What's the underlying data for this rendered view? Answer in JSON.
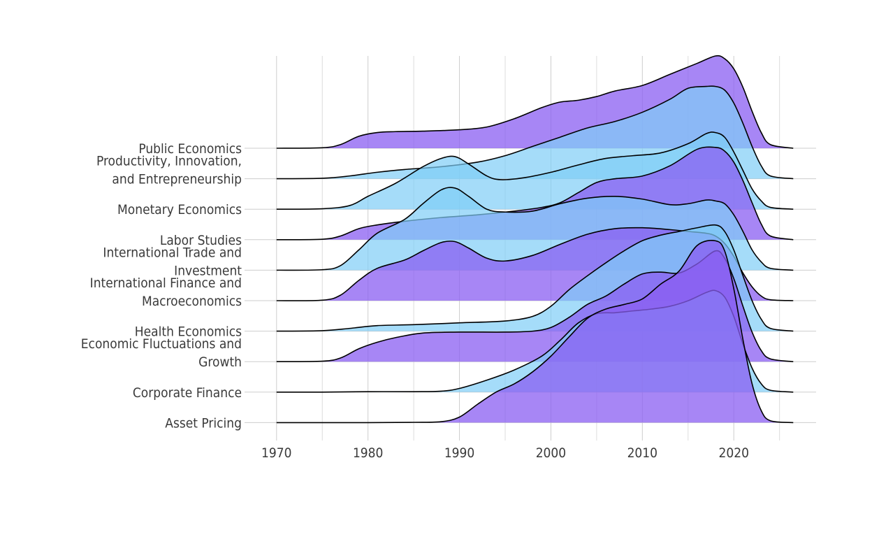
{
  "chart_data": {
    "type": "ridgeline",
    "title": "",
    "xlabel": "",
    "ylabel": "",
    "xlim": [
      1966.5,
      2029
    ],
    "x_ticks": [
      1970,
      1980,
      1990,
      2000,
      2010,
      2020
    ],
    "colors": {
      "purple": "#8a5ef2",
      "blue": "#7fcdf6",
      "grid": "#cfcfcf",
      "outline": "#000000"
    },
    "series": [
      {
        "name": "Public Economics",
        "label_lines": [
          "Public Economics"
        ],
        "color": "purple",
        "x": [
          1970,
          1975,
          1977,
          1979,
          1981,
          1983,
          1986,
          1990,
          1993,
          1996,
          1999,
          2001,
          2003,
          2005,
          2007,
          2010,
          2013,
          2016,
          2018,
          2019,
          2020,
          2021,
          2022,
          2023,
          2024,
          2026.5
        ],
        "y": [
          0,
          0.005,
          0.04,
          0.13,
          0.17,
          0.18,
          0.185,
          0.2,
          0.23,
          0.32,
          0.44,
          0.5,
          0.52,
          0.56,
          0.62,
          0.68,
          0.8,
          0.92,
          1.0,
          0.97,
          0.86,
          0.66,
          0.4,
          0.17,
          0.04,
          0
        ]
      },
      {
        "name": "Productivity, Innovation, and Entrepreneurship",
        "label_lines": [
          "Productivity, Innovation,",
          "and Entrepreneurship"
        ],
        "color": "blue",
        "x": [
          1970,
          1975,
          1978,
          1981,
          1984,
          1988,
          1992,
          1995,
          1998,
          2001,
          2004,
          2007,
          2010,
          2013,
          2015,
          2017,
          2018,
          2019,
          2020,
          2021,
          2022,
          2023,
          2024,
          2026.5
        ],
        "y": [
          0,
          0.005,
          0.03,
          0.07,
          0.1,
          0.13,
          0.18,
          0.25,
          0.35,
          0.45,
          0.55,
          0.62,
          0.72,
          0.86,
          0.98,
          1.0,
          1.0,
          0.96,
          0.82,
          0.6,
          0.35,
          0.14,
          0.03,
          0
        ]
      },
      {
        "name": "Monetary Economics",
        "label_lines": [
          "Monetary Economics"
        ],
        "color": "blue",
        "x": [
          1970,
          1975,
          1978,
          1980,
          1983,
          1986,
          1988,
          1989.5,
          1991,
          1993,
          1994.5,
          1997,
          2000,
          2003,
          2006,
          2009,
          2012,
          2015,
          2017,
          2018,
          2019,
          2020,
          2021,
          2022,
          2023,
          2024,
          2026.5
        ],
        "y": [
          0,
          0.005,
          0.04,
          0.14,
          0.28,
          0.46,
          0.55,
          0.57,
          0.49,
          0.36,
          0.32,
          0.34,
          0.4,
          0.48,
          0.55,
          0.58,
          0.61,
          0.71,
          0.82,
          0.83,
          0.78,
          0.62,
          0.42,
          0.22,
          0.09,
          0.02,
          0
        ]
      },
      {
        "name": "Labor Studies",
        "label_lines": [
          "Labor Studies"
        ],
        "color": "purple",
        "x": [
          1970,
          1975,
          1977,
          1979,
          1981,
          1984,
          1988,
          1992,
          1996,
          1999,
          2001,
          2003,
          2005,
          2007,
          2010,
          2013,
          2016,
          2018,
          2019,
          2020,
          2021,
          2022,
          2023,
          2024,
          2026.5
        ],
        "y": [
          0,
          0.005,
          0.04,
          0.12,
          0.16,
          0.2,
          0.24,
          0.27,
          0.31,
          0.35,
          0.4,
          0.51,
          0.62,
          0.66,
          0.69,
          0.8,
          0.98,
          1.0,
          0.96,
          0.84,
          0.64,
          0.4,
          0.17,
          0.04,
          0
        ]
      },
      {
        "name": "International Trade and Investment",
        "label_lines": [
          "International Trade and",
          "Investment"
        ],
        "color": "blue",
        "x": [
          1970,
          1975,
          1977,
          1979,
          1981,
          1984,
          1986,
          1988,
          1989.5,
          1991,
          1993,
          1995,
          1998,
          2001,
          2004,
          2007,
          2010,
          2013,
          2015,
          2017,
          2018,
          2019,
          2020,
          2021,
          2022,
          2023,
          2024,
          2026.5
        ],
        "y": [
          0,
          0.005,
          0.05,
          0.22,
          0.4,
          0.55,
          0.72,
          0.87,
          0.89,
          0.8,
          0.66,
          0.63,
          0.64,
          0.72,
          0.78,
          0.8,
          0.77,
          0.71,
          0.72,
          0.76,
          0.75,
          0.72,
          0.6,
          0.42,
          0.22,
          0.09,
          0.02,
          0
        ]
      },
      {
        "name": "International Finance and Macroeconomics",
        "label_lines": [
          "International Finance and",
          "Macroeconomics"
        ],
        "color": "purple",
        "x": [
          1970,
          1975,
          1977,
          1979,
          1981,
          1984,
          1986,
          1988,
          1989.5,
          1991,
          1993,
          1995,
          1998,
          2001,
          2004,
          2007,
          2010,
          2013,
          2015,
          2017,
          2018,
          2019,
          2020,
          2021,
          2022,
          2023,
          2024,
          2026.5
        ],
        "y": [
          0,
          0.005,
          0.06,
          0.22,
          0.35,
          0.44,
          0.54,
          0.63,
          0.64,
          0.57,
          0.46,
          0.43,
          0.49,
          0.61,
          0.72,
          0.78,
          0.79,
          0.77,
          0.75,
          0.73,
          0.7,
          0.62,
          0.48,
          0.3,
          0.15,
          0.05,
          0.01,
          0
        ]
      },
      {
        "name": "Health Economics",
        "label_lines": [
          "Health Economics"
        ],
        "color": "blue",
        "x": [
          1970,
          1975,
          1978,
          1981,
          1985,
          1990,
          1995,
          1998,
          2000,
          2002,
          2004,
          2006,
          2008,
          2010,
          2012,
          2014,
          2016,
          2018,
          2019,
          2020,
          2021,
          2022,
          2023,
          2024,
          2026.5
        ],
        "y": [
          0,
          0.005,
          0.03,
          0.06,
          0.07,
          0.09,
          0.11,
          0.16,
          0.27,
          0.45,
          0.6,
          0.74,
          0.87,
          0.98,
          1.04,
          1.08,
          1.12,
          1.15,
          1.08,
          0.88,
          0.6,
          0.33,
          0.13,
          0.03,
          0
        ]
      },
      {
        "name": "Economic Fluctuations and Growth",
        "label_lines": [
          "Economic Fluctuations and",
          "Growth"
        ],
        "color": "purple",
        "x": [
          1970,
          1975,
          1977,
          1979,
          1981,
          1983,
          1986,
          1990,
          1995,
          1998,
          2000,
          2002,
          2004,
          2006,
          2008,
          2010,
          2012,
          2014,
          2016,
          2018,
          2019,
          2020,
          2021,
          2022,
          2023,
          2024,
          2026.5
        ],
        "y": [
          0,
          0.005,
          0.04,
          0.14,
          0.21,
          0.26,
          0.31,
          0.32,
          0.32,
          0.33,
          0.37,
          0.48,
          0.62,
          0.71,
          0.84,
          0.95,
          0.97,
          0.96,
          1.06,
          1.2,
          1.12,
          0.9,
          0.6,
          0.32,
          0.12,
          0.03,
          0
        ]
      },
      {
        "name": "Corporate Finance",
        "label_lines": [
          "Corporate Finance"
        ],
        "color": "blue",
        "x": [
          1970,
          1975,
          1980,
          1985,
          1988,
          1990,
          1993,
          1996,
          1999,
          2001,
          2003,
          2005,
          2007,
          2009,
          2011,
          2013,
          2015,
          2017,
          2018,
          2019,
          2020,
          2021,
          2022,
          2023,
          2024,
          2026.5
        ],
        "y": [
          0,
          0.0,
          0.005,
          0.005,
          0.01,
          0.04,
          0.13,
          0.24,
          0.39,
          0.56,
          0.75,
          0.85,
          0.86,
          0.88,
          0.9,
          0.93,
          0.99,
          1.08,
          1.1,
          1.03,
          0.82,
          0.52,
          0.26,
          0.09,
          0.02,
          0
        ]
      },
      {
        "name": "Asset Pricing",
        "label_lines": [
          "Asset Pricing"
        ],
        "color": "purple",
        "x": [
          1970,
          1980,
          1985,
          1988,
          1990,
          1992,
          1994,
          1996,
          1998,
          2000,
          2002,
          2004,
          2006,
          2008,
          2010,
          2012,
          2014,
          2016,
          2018,
          2019,
          2020,
          2021,
          2022,
          2023,
          2024,
          2026.5
        ],
        "y": [
          0,
          0,
          0.003,
          0.01,
          0.06,
          0.2,
          0.33,
          0.42,
          0.55,
          0.72,
          0.93,
          1.13,
          1.23,
          1.28,
          1.34,
          1.5,
          1.64,
          1.92,
          1.97,
          1.86,
          1.45,
          0.9,
          0.42,
          0.13,
          0.02,
          0
        ]
      }
    ]
  }
}
